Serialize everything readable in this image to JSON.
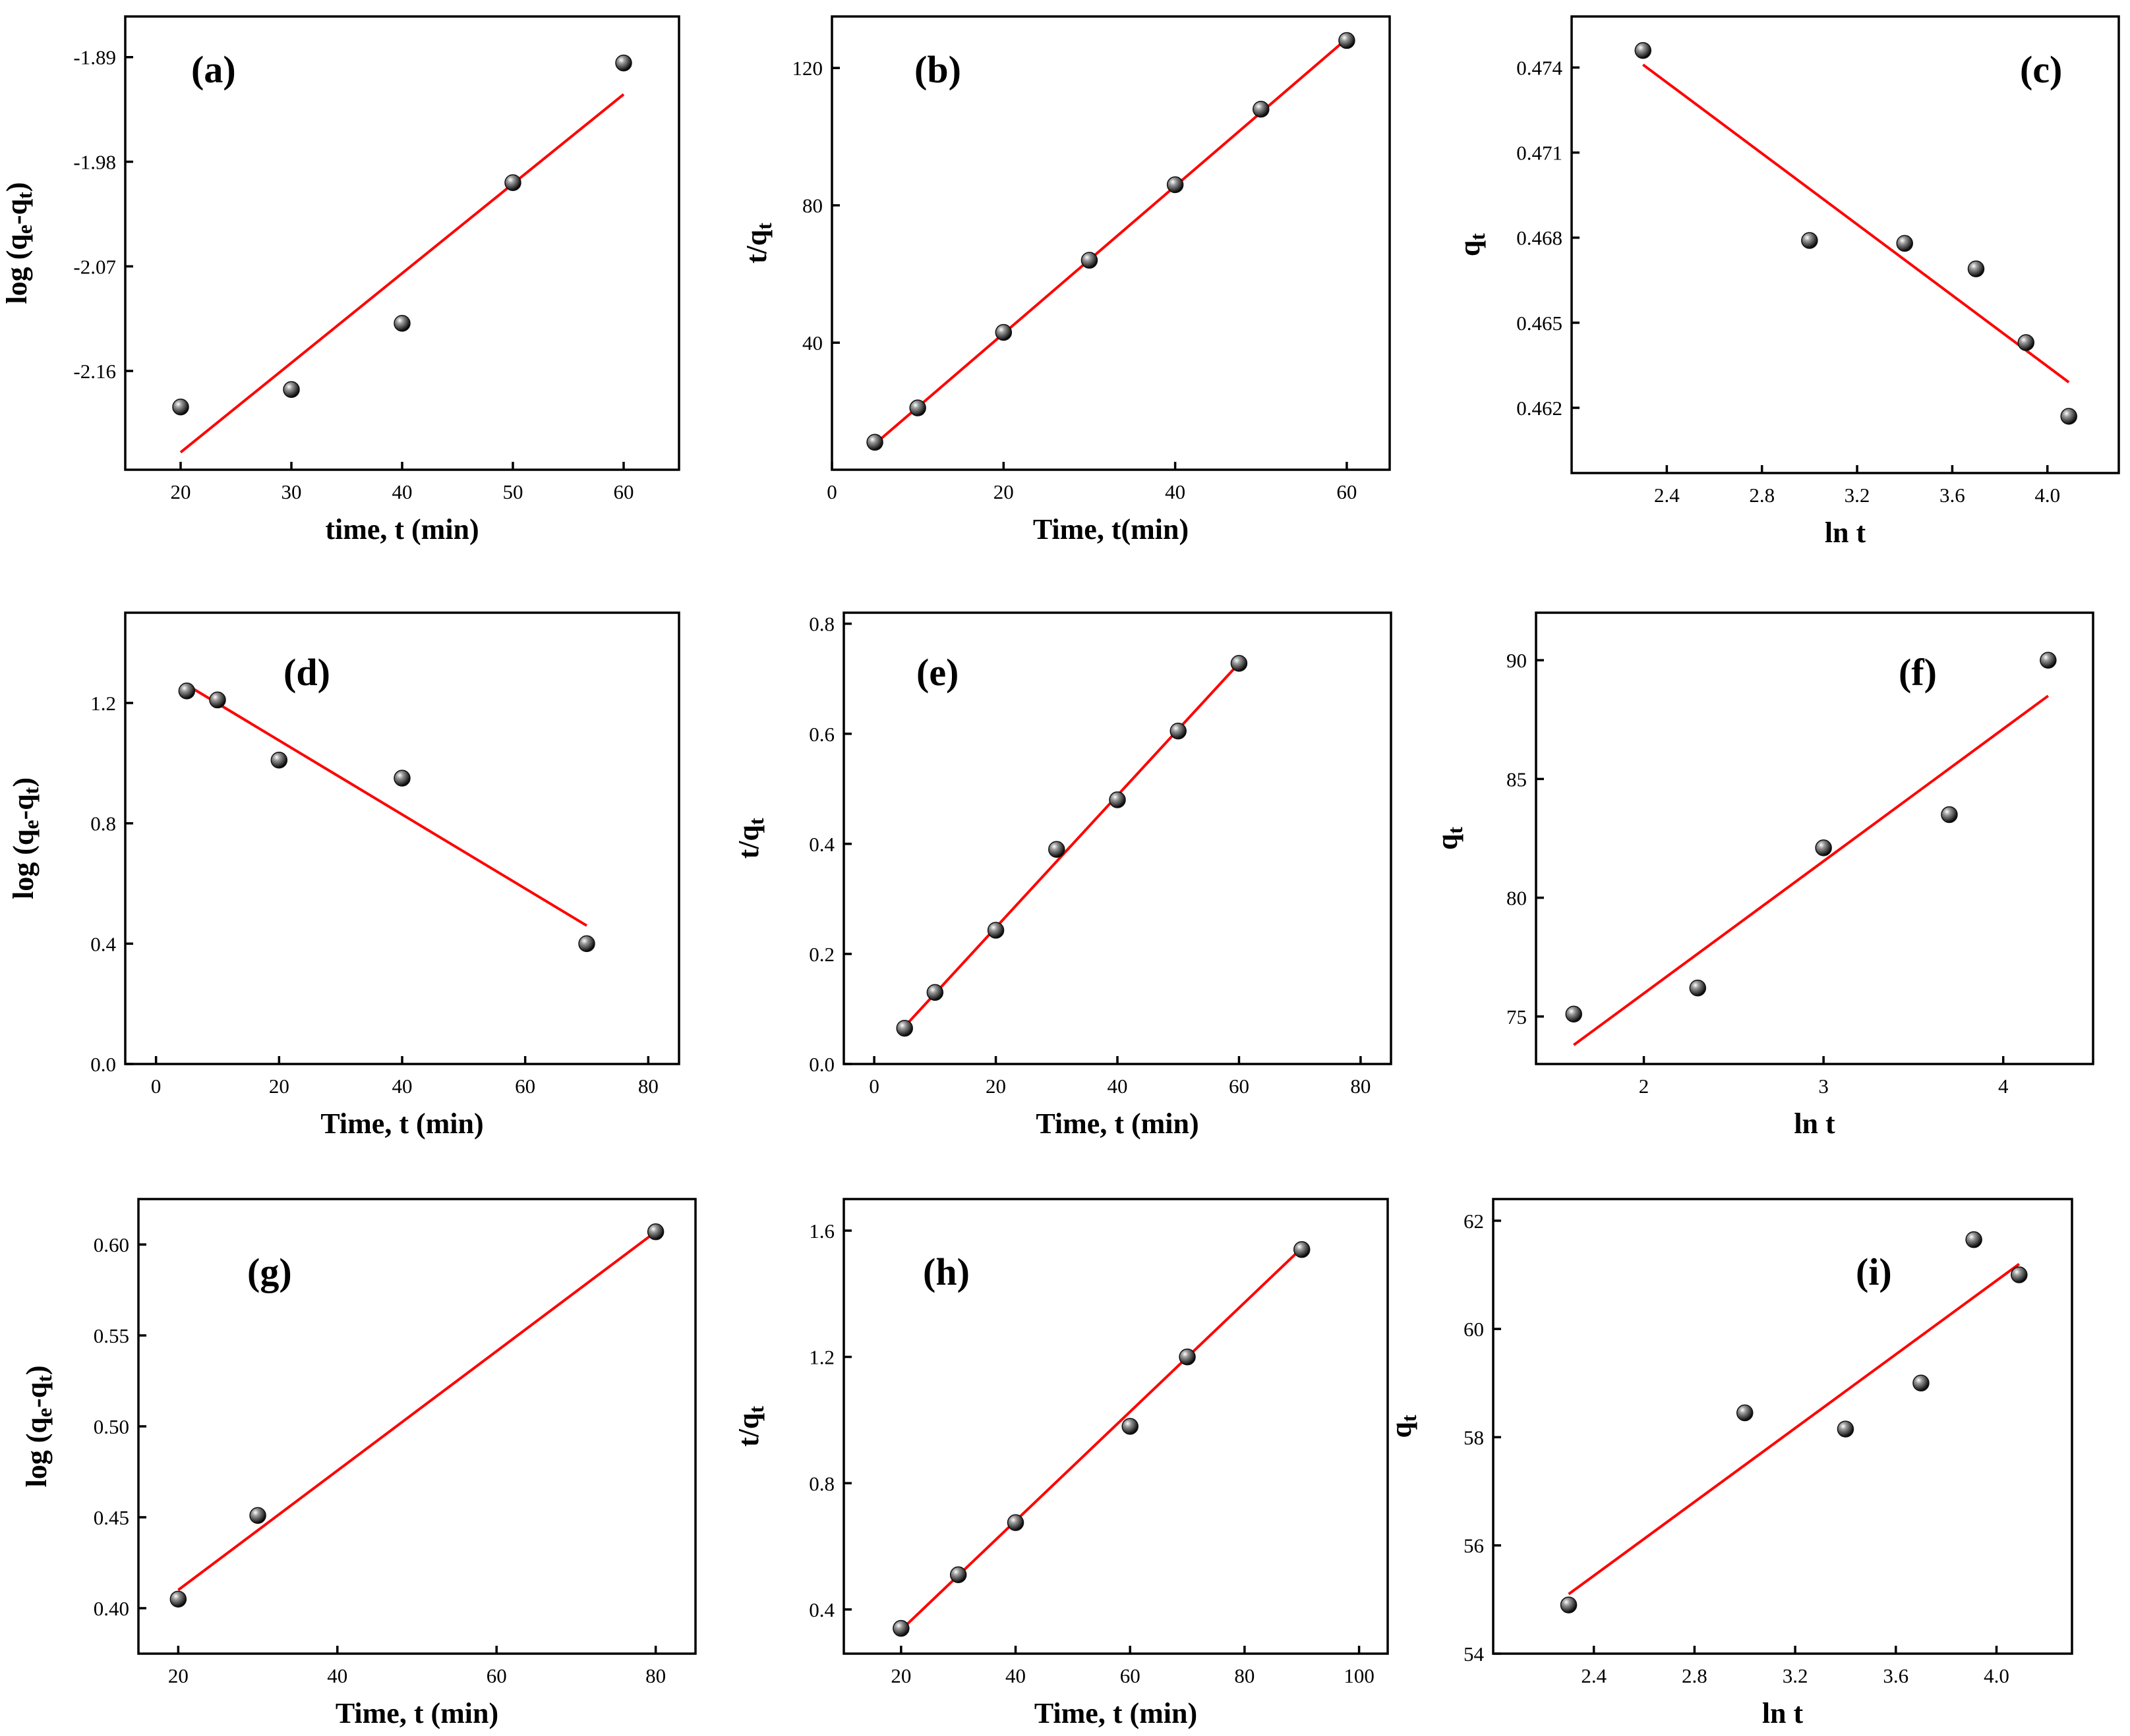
{
  "colors": {
    "fit": "#ff0000",
    "marker": "#000000",
    "axes": "#000000",
    "background": "#ffffff"
  },
  "chart_data": [
    {
      "id": "a",
      "label": "(a)",
      "type": "scatter",
      "xlabel": "time, t (min)",
      "ylabel": {
        "parts": [
          [
            "log (q",
            "n"
          ],
          [
            "e",
            "sub"
          ],
          [
            "-q",
            "n"
          ],
          [
            "t",
            "sub"
          ],
          [
            ")",
            "n"
          ]
        ]
      },
      "xlim": [
        15,
        65
      ],
      "ylim": [
        -2.245,
        -1.855
      ],
      "xticks": [
        20,
        30,
        40,
        50,
        60
      ],
      "xtick_labels": [
        "20",
        "30",
        "40",
        "50",
        "60"
      ],
      "yticks": [
        -2.16,
        -2.07,
        -1.98,
        -1.89
      ],
      "ytick_labels": [
        "-2.16",
        "-2.07",
        "-1.98",
        "-1.89"
      ],
      "x": [
        20,
        30,
        40,
        50,
        60
      ],
      "y": [
        -2.191,
        -2.176,
        -2.119,
        -1.998,
        -1.895
      ],
      "fit": [
        [
          20,
          -2.23
        ],
        [
          60,
          -1.922
        ]
      ]
    },
    {
      "id": "b",
      "label": "(b)",
      "type": "scatter",
      "xlabel": "Time, t(min)",
      "ylabel": {
        "parts": [
          [
            "t/q",
            "n"
          ],
          [
            "t",
            "sub"
          ]
        ]
      },
      "xlim": [
        0,
        65
      ],
      "ylim": [
        3,
        135
      ],
      "xticks": [
        0,
        20,
        40,
        60
      ],
      "xtick_labels": [
        "0",
        "20",
        "40",
        "60"
      ],
      "yticks": [
        40,
        80,
        120
      ],
      "ytick_labels": [
        "40",
        "80",
        "120"
      ],
      "x": [
        5,
        10,
        20,
        30,
        40,
        50,
        60
      ],
      "y": [
        11,
        21,
        43,
        64,
        86,
        108,
        128
      ],
      "fit": [
        [
          5,
          10.5
        ],
        [
          60,
          128.5
        ]
      ]
    },
    {
      "id": "c",
      "label": "(c)",
      "type": "scatter",
      "xlabel": "ln t",
      "ylabel": {
        "parts": [
          [
            "q",
            "n"
          ],
          [
            "t",
            "sub"
          ]
        ]
      },
      "xlim": [
        2.0,
        4.3
      ],
      "ylim": [
        0.4597,
        0.4758
      ],
      "xticks": [
        2.4,
        2.8,
        3.2,
        3.6,
        4.0
      ],
      "xtick_labels": [
        "2.4",
        "2.8",
        "3.2",
        "3.6",
        "4.0"
      ],
      "yticks": [
        0.462,
        0.465,
        0.468,
        0.471,
        0.474
      ],
      "ytick_labels": [
        "0.462",
        "0.465",
        "0.468",
        "0.471",
        "0.474"
      ],
      "x": [
        2.3,
        3.0,
        3.4,
        3.7,
        3.91,
        4.09
      ],
      "y": [
        0.4746,
        0.4679,
        0.4678,
        0.4669,
        0.4643,
        0.4617
      ],
      "fit": [
        [
          2.3,
          0.4741
        ],
        [
          4.09,
          0.4629
        ]
      ]
    },
    {
      "id": "d",
      "label": "(d)",
      "type": "scatter",
      "xlabel": "Time, t (min)",
      "ylabel": {
        "parts": [
          [
            "log (q",
            "n"
          ],
          [
            "e",
            "sub"
          ],
          [
            "-q",
            "n"
          ],
          [
            "t",
            "sub"
          ],
          [
            ")",
            "n"
          ]
        ]
      },
      "xlim": [
        -5,
        85
      ],
      "ylim": [
        0,
        1.5
      ],
      "xticks": [
        0,
        20,
        40,
        60,
        80
      ],
      "xtick_labels": [
        "0",
        "20",
        "40",
        "60",
        "80"
      ],
      "yticks": [
        0.0,
        0.4,
        0.8,
        1.2
      ],
      "ytick_labels": [
        "0.0",
        "0.4",
        "0.8",
        "1.2"
      ],
      "x": [
        5,
        10,
        20,
        40,
        70
      ],
      "y": [
        1.24,
        1.21,
        1.01,
        0.95,
        0.4
      ],
      "fit": [
        [
          5,
          1.26
        ],
        [
          70,
          0.46
        ]
      ]
    },
    {
      "id": "e",
      "label": "(e)",
      "type": "scatter",
      "xlabel": "Time, t (min)",
      "ylabel": {
        "parts": [
          [
            "t/q",
            "n"
          ],
          [
            "t",
            "sub"
          ]
        ]
      },
      "xlim": [
        -5,
        85
      ],
      "ylim": [
        0,
        0.82
      ],
      "xticks": [
        0,
        20,
        40,
        60,
        80
      ],
      "xtick_labels": [
        "0",
        "20",
        "40",
        "60",
        "80"
      ],
      "yticks": [
        0.0,
        0.2,
        0.4,
        0.6,
        0.8
      ],
      "ytick_labels": [
        "0.0",
        "0.2",
        "0.4",
        "0.6",
        "0.8"
      ],
      "x": [
        5,
        10,
        20,
        30,
        40,
        50,
        60
      ],
      "y": [
        0.065,
        0.13,
        0.243,
        0.39,
        0.48,
        0.605,
        0.728
      ],
      "fit": [
        [
          5,
          0.068
        ],
        [
          60,
          0.728
        ]
      ]
    },
    {
      "id": "f",
      "label": "(f)",
      "type": "scatter",
      "xlabel": "ln t",
      "ylabel": {
        "parts": [
          [
            "q",
            "n"
          ],
          [
            "t",
            "sub"
          ]
        ]
      },
      "xlim": [
        1.4,
        4.5
      ],
      "ylim": [
        73,
        92
      ],
      "xticks": [
        2,
        3,
        4
      ],
      "xtick_labels": [
        "2",
        "3",
        "4"
      ],
      "yticks": [
        75,
        80,
        85,
        90
      ],
      "ytick_labels": [
        "75",
        "80",
        "85",
        "90"
      ],
      "x": [
        1.61,
        2.3,
        3.0,
        3.7,
        4.25
      ],
      "y": [
        75.1,
        76.2,
        82.1,
        83.5,
        90.0
      ],
      "fit": [
        [
          1.61,
          73.8
        ],
        [
          4.25,
          88.5
        ]
      ]
    },
    {
      "id": "g",
      "label": "(g)",
      "type": "scatter",
      "xlabel": "Time, t (min)",
      "ylabel": {
        "parts": [
          [
            "log (q",
            "n"
          ],
          [
            "e",
            "sub"
          ],
          [
            "-q",
            "n"
          ],
          [
            "t",
            "sub"
          ],
          [
            ")",
            "n"
          ]
        ]
      },
      "xlim": [
        15,
        85
      ],
      "ylim": [
        0.375,
        0.625
      ],
      "xticks": [
        20,
        40,
        60,
        80
      ],
      "xtick_labels": [
        "20",
        "40",
        "60",
        "80"
      ],
      "yticks": [
        0.4,
        0.45,
        0.5,
        0.55,
        0.6
      ],
      "ytick_labels": [
        "0.40",
        "0.45",
        "0.50",
        "0.55",
        "0.60"
      ],
      "x": [
        20,
        30,
        80
      ],
      "y": [
        0.405,
        0.451,
        0.607
      ],
      "fit": [
        [
          20,
          0.41
        ],
        [
          80,
          0.607
        ]
      ]
    },
    {
      "id": "h",
      "label": "(h)",
      "type": "scatter",
      "xlabel": "Time, t (min)",
      "ylabel": {
        "parts": [
          [
            "t/q",
            "n"
          ],
          [
            "t",
            "sub"
          ]
        ]
      },
      "xlim": [
        10,
        105
      ],
      "ylim": [
        0.26,
        1.7
      ],
      "xticks": [
        20,
        40,
        60,
        80,
        100
      ],
      "xtick_labels": [
        "20",
        "40",
        "60",
        "80",
        "100"
      ],
      "yticks": [
        0.4,
        0.8,
        1.2,
        1.6
      ],
      "ytick_labels": [
        "0.4",
        "0.8",
        "1.2",
        "1.6"
      ],
      "x": [
        20,
        30,
        40,
        60,
        70,
        90
      ],
      "y": [
        0.34,
        0.51,
        0.675,
        0.98,
        1.2,
        1.54
      ],
      "fit": [
        [
          20,
          0.335
        ],
        [
          90,
          1.545
        ]
      ]
    },
    {
      "id": "i",
      "label": "(i)",
      "type": "scatter",
      "xlabel": "ln t",
      "ylabel": {
        "parts": [
          [
            "q",
            "n"
          ],
          [
            "t",
            "sub"
          ]
        ]
      },
      "xlim": [
        2.0,
        4.3
      ],
      "ylim": [
        54,
        62.4
      ],
      "xticks": [
        2.4,
        2.8,
        3.2,
        3.6,
        4.0
      ],
      "xtick_labels": [
        "2.4",
        "2.8",
        "3.2",
        "3.6",
        "4.0"
      ],
      "yticks": [
        54,
        56,
        58,
        60,
        62
      ],
      "ytick_labels": [
        "54",
        "56",
        "58",
        "60",
        "62"
      ],
      "x": [
        2.3,
        3.0,
        3.4,
        3.7,
        3.91,
        4.09
      ],
      "y": [
        54.9,
        58.45,
        58.15,
        59.0,
        61.65,
        61.0
      ],
      "fit": [
        [
          2.3,
          55.1
        ],
        [
          4.09,
          61.2
        ]
      ]
    }
  ]
}
